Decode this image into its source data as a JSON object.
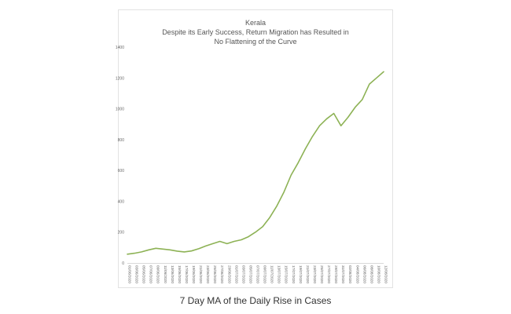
{
  "chart_data": {
    "type": "line",
    "title": "Kerala",
    "subtitle_lines": [
      "Despite its Early Success, Return Migration has Resulted in",
      "No Flattening of the Curve"
    ],
    "xlabel": "",
    "ylabel": "",
    "ylim": [
      0,
      1400
    ],
    "yticks": [
      0,
      200,
      400,
      600,
      800,
      1000,
      1200,
      1400
    ],
    "grid": false,
    "legend": "none",
    "line_color": "#8db255",
    "x": [
      "01/06/2020",
      "03/06/2020",
      "05/06/2020",
      "07/06/2020",
      "09/06/2020",
      "11/06/2020",
      "13/06/2020",
      "15/06/2020",
      "17/06/2020",
      "19/06/2020",
      "21/06/2020",
      "23/06/2020",
      "25/06/2020",
      "27/06/2020",
      "29/06/2020",
      "01/07/2020",
      "03/07/2020",
      "05/07/2020",
      "07/07/2020",
      "09/07/2020",
      "11/07/2020",
      "13/07/2020",
      "15/07/2020",
      "17/07/2020",
      "19/07/2020",
      "21/07/2020",
      "23/07/2020",
      "25/07/2020",
      "27/07/2020",
      "29/07/2020",
      "31/07/2020",
      "02/08/2020",
      "04/08/2020",
      "06/08/2020",
      "08/08/2020",
      "10/08/2020",
      "12/08/2020"
    ],
    "values": [
      57,
      63,
      72,
      85,
      95,
      90,
      85,
      77,
      72,
      78,
      92,
      110,
      125,
      140,
      125,
      140,
      150,
      170,
      200,
      235,
      295,
      370,
      460,
      570,
      650,
      740,
      820,
      890,
      935,
      970,
      890,
      945,
      1010,
      1060,
      1160,
      1200,
      1240
    ]
  },
  "caption": "7 Day MA of the Daily Rise in Cases"
}
